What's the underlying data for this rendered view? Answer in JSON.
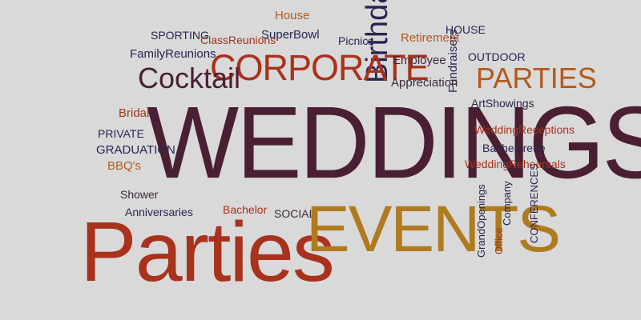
{
  "word_cloud": {
    "colors": {
      "plum": "#4a1f33",
      "navy": "#2a2450",
      "red": "#a8321c",
      "orange": "#b35a1c",
      "gold": "#b07a1e",
      "background": "#d9d9d9"
    },
    "words": [
      "WEDDINGS",
      "Parties",
      "EVENTS",
      "CORPORATE",
      "Cocktail",
      "Birthday",
      "PARTIES",
      "House",
      "SPORTING",
      "ClassReunions",
      "SuperBowl",
      "Picnics",
      "Retirement",
      "HOUSE",
      "FamilyReunions",
      "Employee",
      "OUTDOOR",
      "Fundraisers",
      "Appreciation",
      "ArtShowings",
      "Bridal",
      "PRIVATE",
      "GRADUATION",
      "BBQ's",
      "WeddingReceptions",
      "Bachelorette",
      "WeddingRehearsals",
      "Shower",
      "Anniversaries",
      "Bachelor",
      "SOCIAL",
      "GrandOpenings",
      "Company",
      "CONFERENCES",
      "Office"
    ]
  }
}
